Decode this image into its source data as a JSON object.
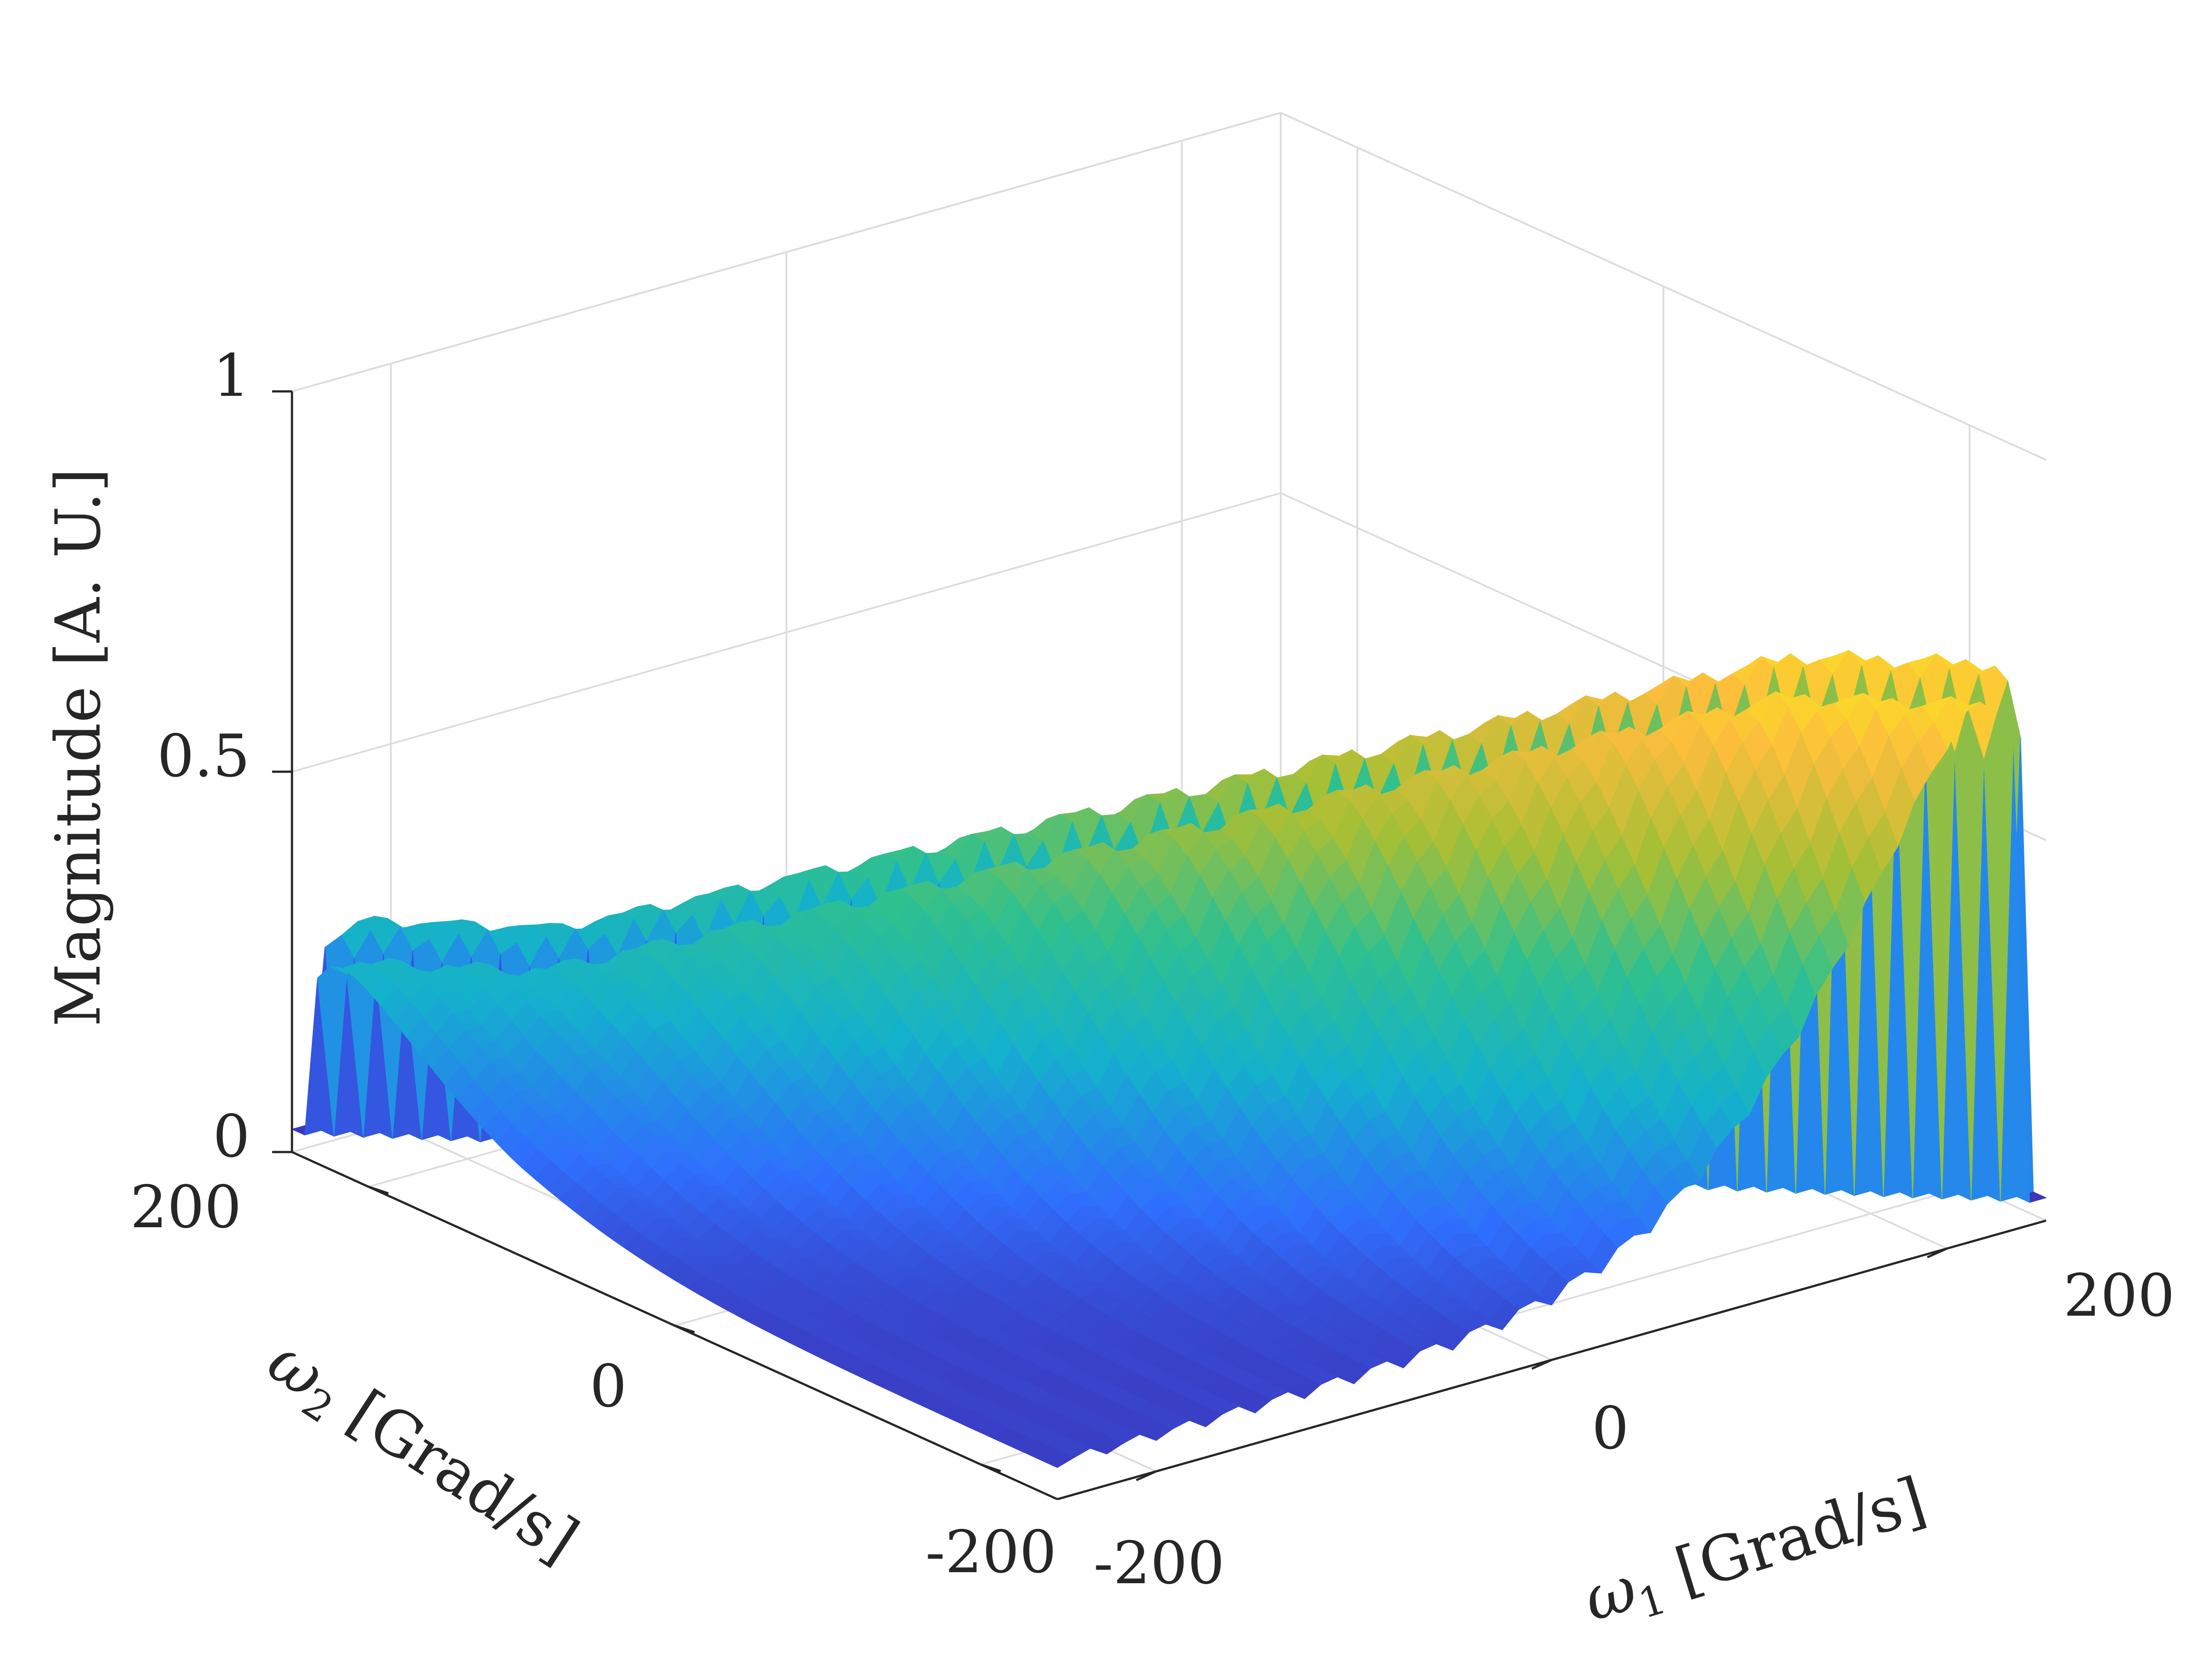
{
  "chart_data": {
    "type": "surface",
    "title": "",
    "xlabel": {
      "symbol": "ω",
      "sub": "1",
      "unit": " [Grad/s]"
    },
    "ylabel": {
      "symbol": "ω",
      "sub": "2",
      "unit": " [Grad/s]"
    },
    "zlabel": "Magnitude [A. U.]",
    "x_ticks": [
      "-200",
      "0",
      "200"
    ],
    "y_ticks": [
      "-200",
      "0",
      "200"
    ],
    "z_ticks": [
      "0",
      "0.5",
      "1"
    ],
    "xlim": [
      -250,
      250
    ],
    "ylim": [
      -250,
      250
    ],
    "zlim": [
      0,
      1
    ],
    "grid": true,
    "colormap": "parula",
    "colors": [
      "#3e26a8",
      "#2f6ffd",
      "#14b1cc",
      "#2fc08f",
      "#a6bf35",
      "#fcbd3d",
      "#f9fb0e"
    ],
    "peak_magnitude": 0.78,
    "view": {
      "azimuth": -37.5,
      "elevation": 30
    }
  }
}
